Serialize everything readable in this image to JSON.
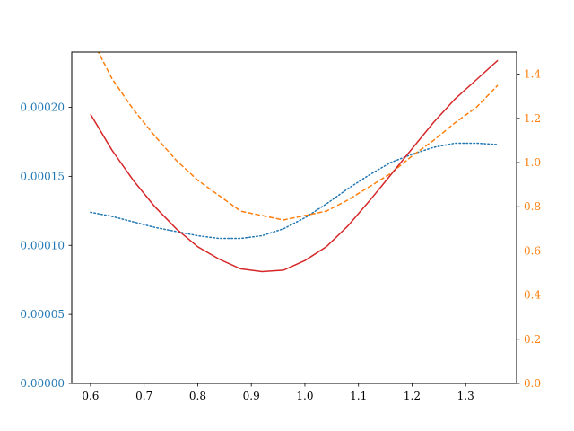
{
  "chart_data": {
    "type": "line",
    "title": "",
    "xlabel": "",
    "ylabel_left": "",
    "ylabel_right": "",
    "grid": false,
    "xlim": [
      0.565,
      1.395
    ],
    "x_ticks": [
      "0.6",
      "0.7",
      "0.8",
      "0.9",
      "1.0",
      "1.1",
      "1.2",
      "1.3"
    ],
    "left_axis": {
      "ylim": [
        0.0,
        0.00024
      ],
      "ticks": [
        "0.00000",
        "0.00005",
        "0.00010",
        "0.00015",
        "0.00020"
      ],
      "tick_color": "#1f77b4"
    },
    "right_axis": {
      "ylim": [
        0.0,
        1.5
      ],
      "ticks": [
        "0.0",
        "0.2",
        "0.4",
        "0.6",
        "0.8",
        "1.0",
        "1.2",
        "1.4"
      ],
      "tick_color": "#ff7f0e"
    },
    "series": [
      {
        "axis": "left",
        "style": "dotted",
        "color": "#1f77b4",
        "x": [
          0.6,
          0.64,
          0.68,
          0.72,
          0.76,
          0.8,
          0.84,
          0.88,
          0.92,
          0.96,
          1.0,
          1.04,
          1.08,
          1.12,
          1.16,
          1.2,
          1.24,
          1.28,
          1.32,
          1.36
        ],
        "y": [
          0.000124,
          0.000121,
          0.000117,
          0.000113,
          0.00011,
          0.000107,
          0.000105,
          0.000105,
          0.000107,
          0.000112,
          0.00012,
          0.00013,
          0.000141,
          0.000151,
          0.00016,
          0.000166,
          0.000171,
          0.000174,
          0.000174,
          0.000173
        ]
      },
      {
        "axis": "right",
        "style": "dashed",
        "color": "#ff7f0e",
        "x": [
          0.6,
          0.64,
          0.68,
          0.72,
          0.76,
          0.8,
          0.84,
          0.88,
          0.92,
          0.96,
          1.0,
          1.04,
          1.08,
          1.12,
          1.16,
          1.2,
          1.24,
          1.28,
          1.32,
          1.36
        ],
        "y": [
          1.57,
          1.38,
          1.24,
          1.12,
          1.01,
          0.92,
          0.85,
          0.78,
          0.76,
          0.74,
          0.76,
          0.78,
          0.83,
          0.89,
          0.95,
          1.03,
          1.1,
          1.18,
          1.25,
          1.35
        ]
      },
      {
        "axis": "left",
        "style": "solid",
        "color": "#d62728",
        "x": [
          0.6,
          0.64,
          0.68,
          0.72,
          0.76,
          0.8,
          0.84,
          0.88,
          0.92,
          0.96,
          1.0,
          1.04,
          1.08,
          1.12,
          1.16,
          1.2,
          1.24,
          1.28,
          1.32,
          1.36
        ],
        "y": [
          0.000195,
          0.000169,
          0.000147,
          0.000128,
          0.000112,
          9.9e-05,
          9e-05,
          8.3e-05,
          8.1e-05,
          8.2e-05,
          8.9e-05,
          9.9e-05,
          0.000114,
          0.000132,
          0.000151,
          0.00017,
          0.000189,
          0.000206,
          0.00022,
          0.000234
        ]
      }
    ]
  }
}
